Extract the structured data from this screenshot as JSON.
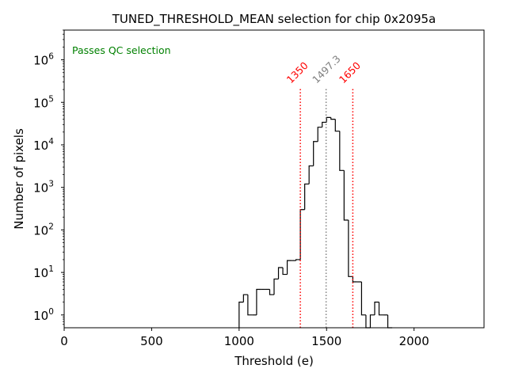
{
  "chart_data": {
    "type": "histogram",
    "title": "TUNED_THRESHOLD_MEAN selection for chip 0x2095a",
    "xlabel": "Threshold (e)",
    "ylabel": "Number of pixels",
    "xlim": [
      0,
      2400
    ],
    "ylim": [
      0.5,
      5000000
    ],
    "yscale": "log",
    "x_ticks": [
      {
        "value": 0,
        "label": "0"
      },
      {
        "value": 500,
        "label": "500"
      },
      {
        "value": 1000,
        "label": "1000"
      },
      {
        "value": 1500,
        "label": "1500"
      },
      {
        "value": 2000,
        "label": "2000"
      }
    ],
    "y_ticks": [
      {
        "value": 1,
        "base": "10",
        "exp": "0"
      },
      {
        "value": 10,
        "base": "10",
        "exp": "1"
      },
      {
        "value": 100,
        "base": "10",
        "exp": "2"
      },
      {
        "value": 1000,
        "base": "10",
        "exp": "3"
      },
      {
        "value": 10000,
        "base": "10",
        "exp": "4"
      },
      {
        "value": 100000,
        "base": "10",
        "exp": "5"
      },
      {
        "value": 1000000,
        "base": "10",
        "exp": "6"
      }
    ],
    "bin_width": 25,
    "bins": [
      {
        "x0": 1000,
        "count": 2
      },
      {
        "x0": 1025,
        "count": 3
      },
      {
        "x0": 1050,
        "count": 1
      },
      {
        "x0": 1075,
        "count": 1
      },
      {
        "x0": 1100,
        "count": 4
      },
      {
        "x0": 1125,
        "count": 4
      },
      {
        "x0": 1150,
        "count": 4
      },
      {
        "x0": 1175,
        "count": 3
      },
      {
        "x0": 1200,
        "count": 7
      },
      {
        "x0": 1225,
        "count": 13
      },
      {
        "x0": 1250,
        "count": 9
      },
      {
        "x0": 1275,
        "count": 19
      },
      {
        "x0": 1300,
        "count": 19
      },
      {
        "x0": 1325,
        "count": 20
      },
      {
        "x0": 1350,
        "count": 300
      },
      {
        "x0": 1375,
        "count": 1200
      },
      {
        "x0": 1400,
        "count": 3200
      },
      {
        "x0": 1425,
        "count": 12000
      },
      {
        "x0": 1450,
        "count": 26000
      },
      {
        "x0": 1475,
        "count": 34000
      },
      {
        "x0": 1500,
        "count": 44000
      },
      {
        "x0": 1525,
        "count": 40000
      },
      {
        "x0": 1550,
        "count": 21000
      },
      {
        "x0": 1575,
        "count": 2500
      },
      {
        "x0": 1600,
        "count": 170
      },
      {
        "x0": 1625,
        "count": 8
      },
      {
        "x0": 1650,
        "count": 6
      },
      {
        "x0": 1675,
        "count": 6
      },
      {
        "x0": 1700,
        "count": 1
      },
      {
        "x0": 1725,
        "count": 0
      },
      {
        "x0": 1750,
        "count": 1
      },
      {
        "x0": 1775,
        "count": 2
      },
      {
        "x0": 1800,
        "count": 1
      },
      {
        "x0": 1825,
        "count": 1
      },
      {
        "x0": 1850,
        "count": 0
      }
    ],
    "lines": [
      {
        "value": 1350,
        "label": "1350",
        "color": "#ff0000",
        "style": "dotted"
      },
      {
        "value": 1497.3,
        "label": "1497.3",
        "color": "#808080",
        "style": "dotted"
      },
      {
        "value": 1650,
        "label": "1650",
        "color": "#ff0000",
        "style": "dotted"
      }
    ],
    "annotation": {
      "text": "Passes QC selection",
      "color": "#008000"
    }
  }
}
